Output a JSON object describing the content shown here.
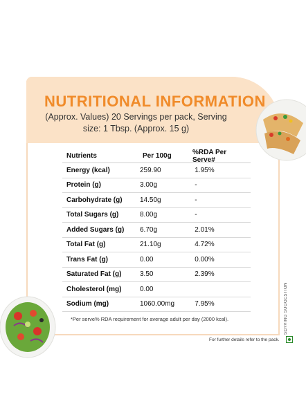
{
  "title": "NUTRITIONAL INFORMATION",
  "subtitle": "(Approx. Values) 20 Servings per pack, Serving size: 1 Tbsp. (Approx. 15 g)",
  "table": {
    "headers": [
      "Nutrients",
      "Per 100g",
      "%RDA Per Serve#"
    ],
    "rows": [
      {
        "nutrient": "Energy (kcal)",
        "per100": "259.90",
        "rda": "1.95%"
      },
      {
        "nutrient": "Protein (g)",
        "per100": "3.00g",
        "rda": "-"
      },
      {
        "nutrient": "Carbohydrate (g)",
        "per100": "14.50g",
        "rda": "-"
      },
      {
        "nutrient": "Total Sugars (g)",
        "per100": "8.00g",
        "rda": "-"
      },
      {
        "nutrient": "Added Sugars (g)",
        "per100": "6.70g",
        "rda": "2.01%"
      },
      {
        "nutrient": "Total Fat (g)",
        "per100": "21.10g",
        "rda": "4.72%"
      },
      {
        "nutrient": "Trans Fat (g)",
        "per100": "0.00",
        "rda": "0.00%"
      },
      {
        "nutrient": "Saturated Fat (g)",
        "per100": "3.50",
        "rda": "2.39%"
      },
      {
        "nutrient": "Cholesterol (mg)",
        "per100": "0.00",
        "rda": ""
      },
      {
        "nutrient": "Sodium (mg)",
        "per100": "1060.00mg",
        "rda": "7.95%"
      }
    ]
  },
  "footnote": "*Per serve% RDA requirement for average adult per day (2000 kcal).",
  "serving_suggestion": "SERVING SUGGESTION",
  "further_details": "For further details refer to the pack.",
  "icons": {
    "veg": "veg-mark-icon",
    "wrap": "wrap-plate-image",
    "salad": "salad-bowl-image"
  },
  "colors": {
    "accent": "#f08b2a",
    "header_bg": "#fbe2c7"
  }
}
